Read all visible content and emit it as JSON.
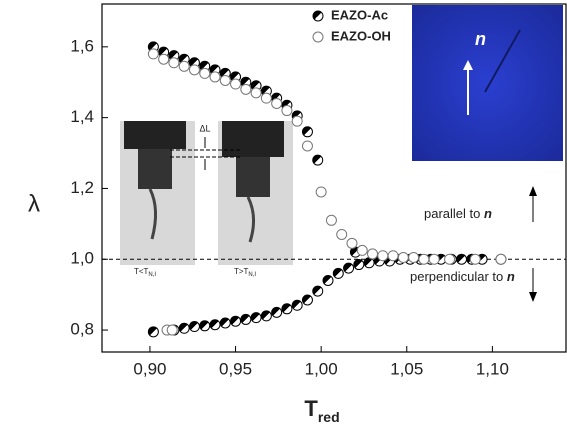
{
  "chart_data": {
    "type": "scatter",
    "xlabel": "T",
    "xlabel_sub": "red",
    "ylabel": "λ",
    "xlim": [
      0.872,
      1.143
    ],
    "ylim": [
      0.738,
      1.721
    ],
    "xticks": [
      {
        "value": 0.9,
        "label": "0,90"
      },
      {
        "value": 0.95,
        "label": "0,95"
      },
      {
        "value": 1.0,
        "label": "1,00"
      },
      {
        "value": 1.05,
        "label": "1,05"
      },
      {
        "value": 1.1,
        "label": "1,10"
      }
    ],
    "yticks": [
      {
        "value": 0.8,
        "label": "0,8"
      },
      {
        "value": 1.0,
        "label": "1,0"
      },
      {
        "value": 1.2,
        "label": "1,2"
      },
      {
        "value": 1.4,
        "label": "1,4"
      },
      {
        "value": 1.6,
        "label": "1,6"
      }
    ],
    "reference_line": 1.0,
    "series": [
      {
        "name": "EAZO-Ac",
        "color": "#000000",
        "marker": "half",
        "x": [
          0.902,
          0.908,
          0.914,
          0.92,
          0.926,
          0.932,
          0.938,
          0.944,
          0.95,
          0.956,
          0.962,
          0.968,
          0.974,
          0.98,
          0.986,
          0.992,
          0.998,
          1.02,
          0.902,
          0.914,
          0.92,
          0.926,
          0.932,
          0.938,
          0.944,
          0.95,
          0.956,
          0.962,
          0.968,
          0.974,
          0.98,
          0.986,
          0.992,
          0.998,
          1.004,
          1.01,
          1.016,
          1.022,
          1.028,
          1.034,
          1.04,
          1.046,
          1.052,
          1.058,
          1.064,
          1.07,
          1.076,
          1.082,
          1.088,
          1.094,
          1.105
        ],
        "values": [
          1.6,
          1.585,
          1.575,
          1.565,
          1.555,
          1.545,
          1.535,
          1.525,
          1.515,
          1.5,
          1.49,
          1.475,
          1.455,
          1.435,
          1.405,
          1.36,
          1.28,
          1.02,
          0.795,
          0.8,
          0.805,
          0.81,
          0.812,
          0.815,
          0.82,
          0.825,
          0.83,
          0.835,
          0.84,
          0.85,
          0.86,
          0.87,
          0.885,
          0.91,
          0.94,
          0.96,
          0.975,
          0.985,
          0.99,
          0.995,
          0.995,
          1.0,
          1.0,
          1.0,
          1.0,
          1.0,
          1.0,
          1.0,
          1.0,
          1.0,
          1.0
        ]
      },
      {
        "name": "EAZO-OH",
        "color": "#777777",
        "marker": "open",
        "x": [
          0.902,
          0.908,
          0.914,
          0.92,
          0.926,
          0.932,
          0.938,
          0.944,
          0.95,
          0.956,
          0.962,
          0.968,
          0.974,
          0.98,
          0.986,
          0.992,
          1.0,
          1.006,
          1.012,
          1.018,
          1.024,
          1.03,
          1.036,
          1.042,
          1.048,
          1.054,
          1.06,
          1.066,
          1.075,
          1.09,
          1.105,
          0.91,
          0.913
        ],
        "values": [
          1.58,
          1.565,
          1.555,
          1.545,
          1.535,
          1.525,
          1.515,
          1.505,
          1.495,
          1.48,
          1.47,
          1.455,
          1.44,
          1.42,
          1.39,
          1.32,
          1.19,
          1.11,
          1.07,
          1.045,
          1.025,
          1.015,
          1.01,
          1.01,
          1.005,
          1.005,
          1.0,
          1.0,
          1.0,
          1.0,
          1.0,
          0.8,
          0.8
        ]
      }
    ],
    "annotations": {
      "upper": "parallel to",
      "lower": "perpendicular to",
      "symbol": "n",
      "delta": "ΔL",
      "left_photo": "T<T",
      "right_photo": "T>T",
      "photo_sub": "N,I"
    }
  }
}
